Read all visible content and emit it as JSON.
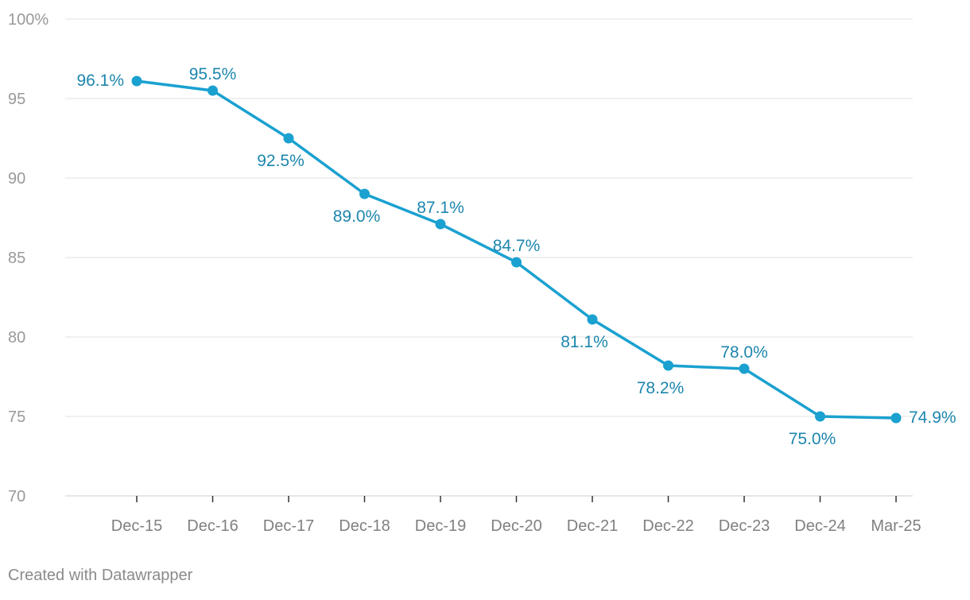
{
  "chart_data": {
    "type": "line",
    "categories": [
      "Dec-15",
      "Dec-16",
      "Dec-17",
      "Dec-18",
      "Dec-19",
      "Dec-20",
      "Dec-21",
      "Dec-22",
      "Dec-23",
      "Dec-24",
      "Mar-25"
    ],
    "values": [
      96.1,
      95.5,
      92.5,
      89.0,
      87.1,
      84.7,
      81.1,
      78.2,
      78.0,
      75.0,
      74.9
    ],
    "data_labels": [
      "96.1%",
      "95.5%",
      "92.5%",
      "89.0%",
      "87.1%",
      "84.7%",
      "81.1%",
      "78.2%",
      "78.0%",
      "75.0%",
      "74.9%"
    ],
    "label_positions": [
      "left",
      "above",
      "below",
      "below",
      "above",
      "above",
      "below",
      "below",
      "above",
      "below",
      "right"
    ],
    "y_ticks": [
      {
        "value": 100,
        "label": "100%"
      },
      {
        "value": 95,
        "label": "95"
      },
      {
        "value": 90,
        "label": "90"
      },
      {
        "value": 85,
        "label": "85"
      },
      {
        "value": 80,
        "label": "80"
      },
      {
        "value": 75,
        "label": "75"
      },
      {
        "value": 70,
        "label": "70"
      }
    ],
    "ylim": [
      70,
      100
    ],
    "grid": true,
    "title": "",
    "xlabel": "",
    "ylabel": "",
    "colors": {
      "line": "#1aa1d0",
      "label": "#1c86ad",
      "grid": "#e2e2e2",
      "axis_text": "#999999",
      "x_axis_text": "#808080"
    }
  },
  "footer": {
    "credit": "Created with Datawrapper"
  }
}
